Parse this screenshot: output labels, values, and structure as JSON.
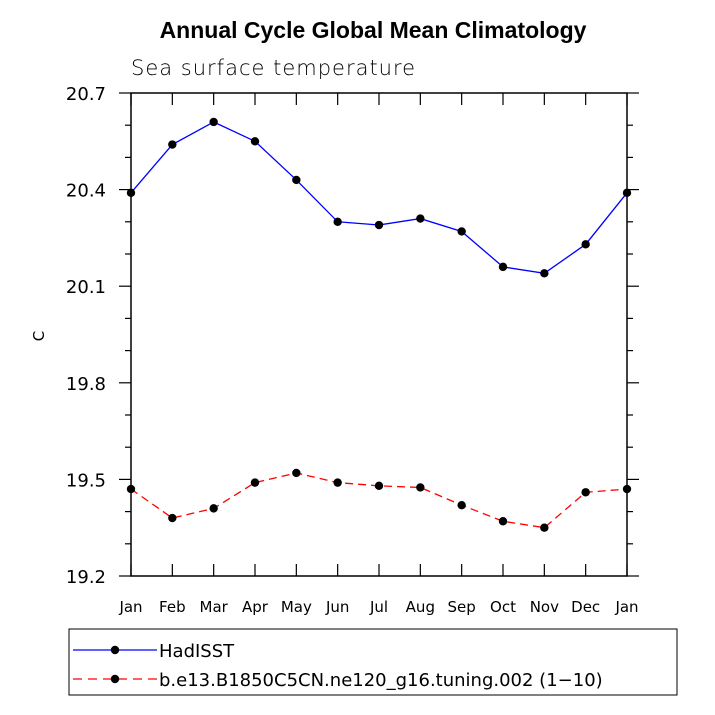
{
  "chart_data": {
    "type": "line",
    "title": "Annual Cycle Global Mean Climatology",
    "subtitle": "Sea surface temperature",
    "xlabel": "",
    "ylabel": "C",
    "categories": [
      "Jan",
      "Feb",
      "Mar",
      "Apr",
      "May",
      "Jun",
      "Jul",
      "Aug",
      "Sep",
      "Oct",
      "Nov",
      "Dec",
      "Jan"
    ],
    "ylim": [
      19.2,
      20.7
    ],
    "yticks": [
      "19.2",
      "19.5",
      "19.8",
      "20.1",
      "20.4",
      "20.7"
    ],
    "grid": false,
    "legend_position": "bottom",
    "series": [
      {
        "name": "HadISST",
        "color": "#0000ff",
        "line_style": "solid",
        "marker": "filled-circle",
        "values": [
          20.39,
          20.54,
          20.61,
          20.55,
          20.43,
          20.3,
          20.29,
          20.31,
          20.27,
          20.16,
          20.14,
          20.23,
          20.39
        ]
      },
      {
        "name": "b.e13.B1850C5CN.ne120_g16.tuning.002 (1−10)",
        "color": "#ff0000",
        "line_style": "dashed",
        "marker": "filled-circle",
        "values": [
          19.47,
          19.38,
          19.41,
          19.49,
          19.52,
          19.49,
          19.48,
          19.475,
          19.42,
          19.37,
          19.35,
          19.46,
          19.47
        ]
      }
    ]
  }
}
